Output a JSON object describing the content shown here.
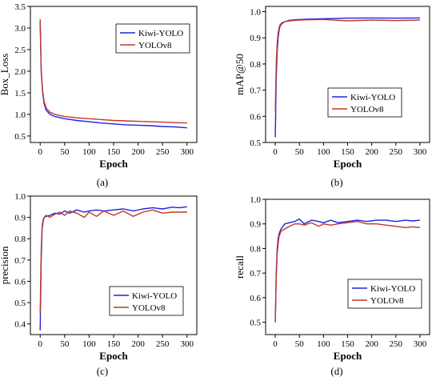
{
  "colors": {
    "kiwi": "#2222dd",
    "yolo": "#c0392b",
    "axis": "#000000",
    "background": "#ffffff"
  },
  "panels": [
    "(a)",
    "(b)",
    "(c)",
    "(d)"
  ],
  "chart_data": [
    {
      "type": "line",
      "caption": "(a)",
      "xlabel": "Epoch",
      "ylabel": "Box_Loss",
      "xlim": [
        -20,
        320
      ],
      "ylim": [
        0.35,
        3.5
      ],
      "xticks": [
        0,
        50,
        100,
        150,
        200,
        250,
        300
      ],
      "yticks": [
        0.5,
        1.0,
        1.5,
        2.0,
        2.5,
        3.0,
        3.5
      ],
      "ytick_labels": [
        "0.5",
        "1.0",
        "1.5",
        "2.0",
        "2.5",
        "3.0",
        "3.5"
      ],
      "legend": "top-right",
      "series": [
        {
          "name": "Kiwi-YOLO",
          "color": "#2222dd",
          "x": [
            0,
            2,
            5,
            8,
            12,
            20,
            30,
            50,
            75,
            100,
            125,
            150,
            175,
            200,
            225,
            250,
            275,
            300
          ],
          "y": [
            3.15,
            2.0,
            1.5,
            1.25,
            1.1,
            1.0,
            0.95,
            0.9,
            0.86,
            0.83,
            0.8,
            0.78,
            0.76,
            0.75,
            0.74,
            0.72,
            0.71,
            0.69
          ]
        },
        {
          "name": "YOLOv8",
          "color": "#c0392b",
          "x": [
            0,
            2,
            5,
            8,
            12,
            20,
            30,
            50,
            75,
            100,
            125,
            150,
            175,
            200,
            225,
            250,
            275,
            300
          ],
          "y": [
            3.2,
            2.05,
            1.55,
            1.3,
            1.15,
            1.05,
            1.0,
            0.95,
            0.92,
            0.9,
            0.88,
            0.86,
            0.85,
            0.84,
            0.83,
            0.82,
            0.81,
            0.8
          ]
        }
      ]
    },
    {
      "type": "line",
      "caption": "(b)",
      "xlabel": "Epoch",
      "ylabel": "mAP@50",
      "xlim": [
        -20,
        320
      ],
      "ylim": [
        0.5,
        1.02
      ],
      "xticks": [
        0,
        50,
        100,
        150,
        200,
        250,
        300
      ],
      "yticks": [
        0.5,
        0.6,
        0.7,
        0.8,
        0.9,
        1.0
      ],
      "ytick_labels": [
        "0.5",
        "0.6",
        "0.7",
        "0.8",
        "0.9",
        "1.0"
      ],
      "legend": "bottom-right",
      "series": [
        {
          "name": "Kiwi-YOLO",
          "color": "#2222dd",
          "x": [
            0,
            2,
            4,
            6,
            8,
            10,
            14,
            20,
            30,
            50,
            100,
            150,
            200,
            250,
            300
          ],
          "y": [
            0.52,
            0.75,
            0.85,
            0.9,
            0.93,
            0.945,
            0.955,
            0.962,
            0.967,
            0.97,
            0.973,
            0.975,
            0.976,
            0.975,
            0.976
          ]
        },
        {
          "name": "YOLOv8",
          "color": "#c0392b",
          "x": [
            0,
            2,
            4,
            6,
            8,
            10,
            14,
            20,
            30,
            50,
            100,
            150,
            200,
            250,
            300
          ],
          "y": [
            0.62,
            0.8,
            0.88,
            0.92,
            0.94,
            0.95,
            0.958,
            0.962,
            0.965,
            0.968,
            0.97,
            0.965,
            0.968,
            0.966,
            0.968
          ]
        }
      ]
    },
    {
      "type": "line",
      "caption": "(c)",
      "xlabel": "Epoch",
      "ylabel": "precision",
      "xlim": [
        -20,
        320
      ],
      "ylim": [
        0.35,
        1.0
      ],
      "xticks": [
        0,
        50,
        100,
        150,
        200,
        250,
        300
      ],
      "yticks": [
        0.4,
        0.5,
        0.6,
        0.7,
        0.8,
        0.9,
        1.0
      ],
      "ytick_labels": [
        "0.4",
        "0.5",
        "0.6",
        "0.7",
        "0.8",
        "0.9",
        "1.0"
      ],
      "legend": "bottom-right",
      "series": [
        {
          "name": "Kiwi-YOLO",
          "color": "#2222dd",
          "x": [
            0,
            2,
            4,
            6,
            8,
            12,
            20,
            30,
            40,
            50,
            60,
            75,
            90,
            100,
            115,
            130,
            150,
            170,
            190,
            210,
            230,
            250,
            270,
            285,
            300
          ],
          "y": [
            0.37,
            0.7,
            0.85,
            0.88,
            0.9,
            0.905,
            0.91,
            0.92,
            0.915,
            0.93,
            0.92,
            0.935,
            0.925,
            0.93,
            0.935,
            0.93,
            0.935,
            0.94,
            0.93,
            0.94,
            0.945,
            0.94,
            0.948,
            0.945,
            0.95
          ]
        },
        {
          "name": "YOLOv8",
          "color": "#c0392b",
          "x": [
            0,
            2,
            4,
            6,
            8,
            12,
            20,
            30,
            40,
            50,
            60,
            75,
            90,
            100,
            115,
            130,
            150,
            170,
            190,
            210,
            230,
            250,
            270,
            285,
            300
          ],
          "y": [
            0.45,
            0.75,
            0.86,
            0.89,
            0.9,
            0.91,
            0.9,
            0.915,
            0.925,
            0.91,
            0.93,
            0.92,
            0.9,
            0.925,
            0.905,
            0.93,
            0.91,
            0.93,
            0.905,
            0.925,
            0.935,
            0.92,
            0.925,
            0.925,
            0.925
          ]
        }
      ]
    },
    {
      "type": "line",
      "caption": "(d)",
      "xlabel": "Epoch",
      "ylabel": "recall",
      "xlim": [
        -20,
        320
      ],
      "ylim": [
        0.45,
        1.0
      ],
      "xticks": [
        0,
        50,
        100,
        150,
        200,
        250,
        300
      ],
      "yticks": [
        0.5,
        0.6,
        0.7,
        0.8,
        0.9,
        1.0
      ],
      "ytick_labels": [
        "0.5",
        "0.6",
        "0.7",
        "0.8",
        "0.9",
        "1.0"
      ],
      "legend": "bottom-right",
      "series": [
        {
          "name": "Kiwi-YOLO",
          "color": "#2222dd",
          "x": [
            0,
            2,
            4,
            6,
            8,
            12,
            20,
            30,
            40,
            50,
            60,
            75,
            90,
            100,
            115,
            130,
            150,
            170,
            190,
            210,
            230,
            250,
            270,
            285,
            300
          ],
          "y": [
            0.5,
            0.7,
            0.8,
            0.84,
            0.86,
            0.88,
            0.9,
            0.905,
            0.91,
            0.92,
            0.9,
            0.915,
            0.91,
            0.905,
            0.915,
            0.905,
            0.91,
            0.915,
            0.91,
            0.915,
            0.915,
            0.91,
            0.915,
            0.912,
            0.915
          ]
        },
        {
          "name": "YOLOv8",
          "color": "#c0392b",
          "x": [
            0,
            2,
            4,
            6,
            8,
            12,
            20,
            30,
            40,
            50,
            60,
            75,
            90,
            100,
            115,
            130,
            150,
            170,
            190,
            210,
            230,
            250,
            270,
            285,
            300
          ],
          "y": [
            0.5,
            0.68,
            0.78,
            0.82,
            0.85,
            0.87,
            0.88,
            0.89,
            0.9,
            0.9,
            0.895,
            0.905,
            0.89,
            0.9,
            0.895,
            0.9,
            0.905,
            0.91,
            0.9,
            0.9,
            0.895,
            0.89,
            0.885,
            0.888,
            0.885
          ]
        }
      ]
    }
  ]
}
